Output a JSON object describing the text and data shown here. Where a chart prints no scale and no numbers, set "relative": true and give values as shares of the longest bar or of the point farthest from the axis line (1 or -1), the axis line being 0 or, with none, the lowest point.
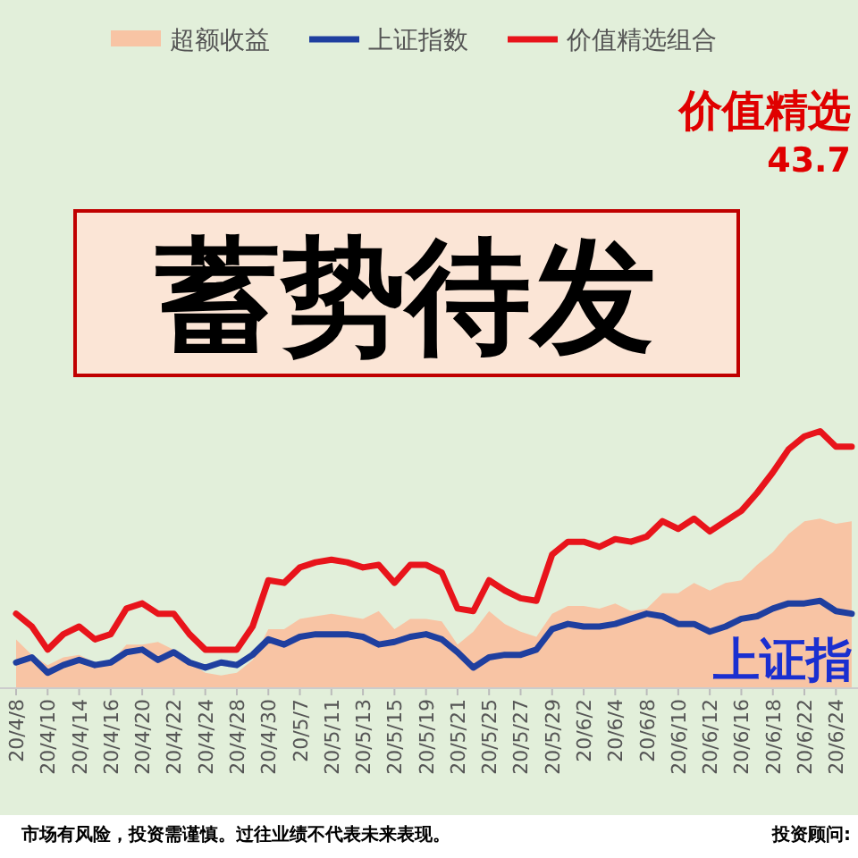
{
  "chart_data": {
    "type": "line",
    "relative": true,
    "legend": "top",
    "line_style": "solid",
    "marker": "none",
    "categories": [
      "20/4/8",
      null,
      "20/4/10",
      null,
      "20/4/14",
      null,
      "20/4/16",
      null,
      "20/4/20",
      null,
      "20/4/22",
      null,
      "20/4/24",
      null,
      "20/4/28",
      null,
      "20/4/30",
      null,
      "20/5/7",
      null,
      "20/5/11",
      null,
      "20/5/13",
      null,
      "20/5/15",
      null,
      "20/5/19",
      null,
      "20/5/21",
      null,
      "20/5/25",
      null,
      "20/5/27",
      null,
      "20/5/29",
      null,
      "20/6/2",
      null,
      "20/6/4",
      null,
      "20/6/8",
      null,
      "20/6/10",
      null,
      "20/6/12",
      null,
      "20/6/16",
      null,
      "20/6/18",
      null,
      "20/6/22",
      null,
      "20/6/24",
      null
    ],
    "series": [
      {
        "name": "超额收益",
        "type": "area",
        "color": "#f8c4a4",
        "values": [
          0.19,
          0.13,
          0.09,
          0.12,
          0.13,
          0.1,
          0.1,
          0.17,
          0.17,
          0.18,
          0.15,
          0.1,
          0.06,
          0.05,
          0.06,
          0.11,
          0.23,
          0.23,
          0.27,
          0.28,
          0.29,
          0.28,
          0.27,
          0.3,
          0.23,
          0.27,
          0.27,
          0.26,
          0.17,
          0.22,
          0.3,
          0.25,
          0.22,
          0.2,
          0.29,
          0.32,
          0.32,
          0.31,
          0.33,
          0.3,
          0.31,
          0.37,
          0.37,
          0.41,
          0.38,
          0.41,
          0.42,
          0.48,
          0.53,
          0.6,
          0.65,
          0.66,
          0.64,
          0.65
        ]
      },
      {
        "name": "上证指数",
        "type": "line",
        "color": "#1f3f9f",
        "values": [
          0.1,
          0.12,
          0.06,
          0.09,
          0.11,
          0.09,
          0.1,
          0.14,
          0.15,
          0.11,
          0.14,
          0.1,
          0.08,
          0.1,
          0.09,
          0.13,
          0.19,
          0.17,
          0.2,
          0.21,
          0.21,
          0.21,
          0.2,
          0.17,
          0.18,
          0.2,
          0.21,
          0.19,
          0.14,
          0.08,
          0.12,
          0.13,
          0.13,
          0.15,
          0.23,
          0.25,
          0.24,
          0.24,
          0.25,
          0.27,
          0.29,
          0.28,
          0.25,
          0.25,
          0.22,
          0.24,
          0.27,
          0.28,
          0.31,
          0.33,
          0.33,
          0.34,
          0.3,
          0.29
        ]
      },
      {
        "name": "价值精选组合",
        "type": "line",
        "color": "#e8141b",
        "values": [
          0.29,
          0.24,
          0.15,
          0.21,
          0.24,
          0.19,
          0.21,
          0.31,
          0.33,
          0.29,
          0.29,
          0.21,
          0.15,
          0.15,
          0.15,
          0.24,
          0.42,
          0.41,
          0.47,
          0.49,
          0.5,
          0.49,
          0.47,
          0.48,
          0.41,
          0.48,
          0.48,
          0.45,
          0.31,
          0.3,
          0.42,
          0.38,
          0.35,
          0.34,
          0.52,
          0.57,
          0.57,
          0.55,
          0.58,
          0.57,
          0.59,
          0.65,
          0.62,
          0.66,
          0.61,
          0.65,
          0.69,
          0.76,
          0.84,
          0.93,
          0.98,
          1,
          0.94,
          0.94
        ]
      }
    ],
    "annotations": [
      "蓄势待发",
      "价值精选",
      "43.7",
      "上证指",
      "市场有风险，投资需谨慎。过往业绩不代表未来表现。",
      "投资顾问:"
    ]
  }
}
